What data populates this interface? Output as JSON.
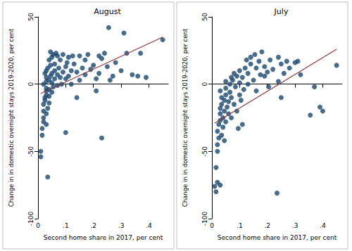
{
  "chart_data": [
    {
      "type": "scatter",
      "title": "August",
      "x_label": "Second home share in 2017, per cent",
      "y_label": "Change in in domestic overnight stays 2019-2020, per cent",
      "xlim": [
        0,
        0.47
      ],
      "ylim": [
        -100,
        50
      ],
      "xticks": [
        0,
        {
          "value": 0.1,
          "label": ".1"
        },
        {
          "value": 0.2,
          "label": ".2"
        },
        {
          "value": 0.3,
          "label": ".3"
        },
        {
          "value": 0.4,
          "label": ".4"
        }
      ],
      "yticks": [
        -100,
        -50,
        0,
        50
      ],
      "grid": false,
      "series": [
        {
          "type": "scatter",
          "color": "#1a476f",
          "marker": "circle",
          "x": [
            0.01,
            0.01,
            0.015,
            0.015,
            0.02,
            0.02,
            0.02,
            0.02,
            0.025,
            0.025,
            0.03,
            0.03,
            0.03,
            0.02,
            0.03,
            0.03,
            0.025,
            0.03,
            0.035,
            0.035,
            0.035,
            0.03,
            0.03,
            0.04,
            0.04,
            0.04,
            0.04,
            0.045,
            0.045,
            0.04,
            0.045,
            0.05,
            0.055,
            0.05,
            0.05,
            0.055,
            0.05,
            0.06,
            0.06,
            0.06,
            0.065,
            0.07,
            0.07,
            0.07,
            0.075,
            0.08,
            0.08,
            0.085,
            0.09,
            0.09,
            0.1,
            0.1,
            0.1,
            0.105,
            0.11,
            0.11,
            0.12,
            0.12,
            0.125,
            0.13,
            0.14,
            0.14,
            0.15,
            0.15,
            0.16,
            0.17,
            0.17,
            0.18,
            0.19,
            0.2,
            0.21,
            0.21,
            0.22,
            0.22,
            0.23,
            0.23,
            0.24,
            0.25,
            0.255,
            0.26,
            0.27,
            0.28,
            0.3,
            0.31,
            0.32,
            0.34,
            0.36,
            0.37,
            0.39,
            0.45
          ],
          "values": [
            -54,
            -50,
            -38,
            -33,
            -28,
            -25,
            -20,
            -15,
            -12,
            -10,
            -8,
            -5,
            -3,
            0,
            2,
            5,
            8,
            10,
            12,
            -69,
            -18,
            -22,
            -30,
            -14,
            -9,
            -4,
            3,
            6,
            14,
            18,
            24,
            20,
            22,
            8,
            1,
            -2,
            -6,
            4,
            10,
            15,
            23,
            21,
            7,
            -1,
            12,
            5,
            18,
            0,
            9,
            22,
            13,
            4,
            -36,
            16,
            20,
            6,
            10,
            0,
            21,
            15,
            -10,
            9,
            21,
            3,
            12,
            18,
            7,
            22,
            11,
            14,
            -5,
            4,
            21,
            8,
            19,
            -40,
            23,
            13,
            42,
            3,
            6,
            16,
            10,
            38,
            23,
            7,
            6,
            23,
            5,
            33
          ]
        },
        {
          "type": "line",
          "color": "#90353b",
          "line_style": "solid",
          "x": [
            0.01,
            0.45
          ],
          "values": [
            -7,
            35
          ]
        }
      ]
    },
    {
      "type": "scatter",
      "title": "July",
      "x_label": "Second home share in 2017, per cent",
      "y_label": "Change in in domestic overnight stays 2019-2020, per cent",
      "xlim": [
        0,
        0.47
      ],
      "ylim": [
        -100,
        50
      ],
      "xticks": [
        0,
        {
          "value": 0.1,
          "label": ".1"
        },
        {
          "value": 0.2,
          "label": ".2"
        },
        {
          "value": 0.3,
          "label": ".3"
        },
        {
          "value": 0.4,
          "label": ".4"
        }
      ],
      "yticks": [
        -100,
        -50,
        0,
        50
      ],
      "grid": false,
      "series": [
        {
          "type": "scatter",
          "color": "#1a476f",
          "marker": "circle",
          "x": [
            0.01,
            0.015,
            0.02,
            0.015,
            0.02,
            0.02,
            0.025,
            0.02,
            0.025,
            0.03,
            0.03,
            0.03,
            0.035,
            0.035,
            0.03,
            0.03,
            0.035,
            0.04,
            0.04,
            0.045,
            0.045,
            0.05,
            0.05,
            0.05,
            0.05,
            0.045,
            0.055,
            0.06,
            0.06,
            0.065,
            0.065,
            0.07,
            0.07,
            0.07,
            0.075,
            0.08,
            0.08,
            0.085,
            0.09,
            0.09,
            0.095,
            0.1,
            0.1,
            0.1,
            0.105,
            0.11,
            0.11,
            0.115,
            0.12,
            0.125,
            0.13,
            0.13,
            0.14,
            0.14,
            0.15,
            0.155,
            0.16,
            0.16,
            0.17,
            0.175,
            0.18,
            0.19,
            0.19,
            0.2,
            0.205,
            0.21,
            0.22,
            0.235,
            0.24,
            0.24,
            0.25,
            0.25,
            0.26,
            0.27,
            0.28,
            0.3,
            0.31,
            0.32,
            0.355,
            0.37,
            0.39,
            0.4,
            0.45
          ],
          "values": [
            -76,
            -80,
            -73,
            -62,
            -50,
            -45,
            -40,
            -35,
            -30,
            -27,
            -22,
            -18,
            -15,
            -10,
            -5,
            -75,
            -38,
            -32,
            -25,
            -20,
            -12,
            -8,
            -3,
            2,
            -28,
            -42,
            -17,
            -13,
            -22,
            -6,
            0,
            5,
            -10,
            -25,
            3,
            -15,
            8,
            -2,
            -20,
            6,
            -33,
            -8,
            1,
            10,
            -12,
            5,
            -30,
            -4,
            12,
            18,
            8,
            0,
            15,
            20,
            3,
            22,
            12,
            -5,
            17,
            7,
            24,
            13,
            6,
            9,
            -2,
            18,
            11,
            -81,
            20,
            2,
            15,
            -10,
            8,
            17,
            12,
            16,
            17,
            7,
            -23,
            -2,
            -17,
            -20,
            14
          ]
        },
        {
          "type": "line",
          "color": "#90353b",
          "line_style": "solid",
          "x": [
            0.01,
            0.45
          ],
          "values": [
            -29,
            26
          ]
        }
      ]
    }
  ]
}
